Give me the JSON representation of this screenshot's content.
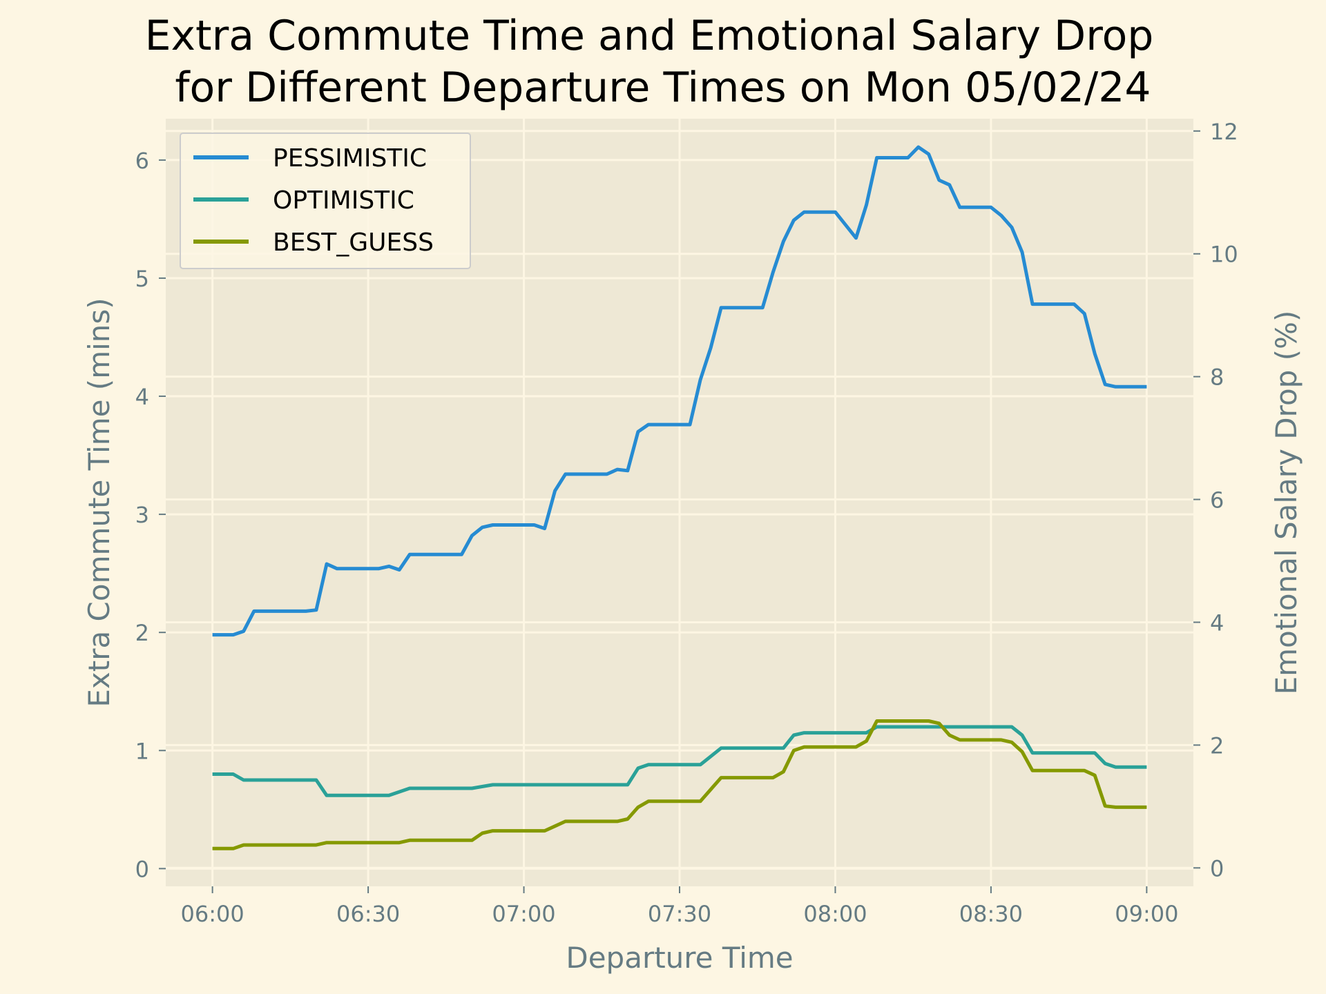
{
  "chart_data": {
    "type": "line",
    "title": [
      "Extra Commute Time and Emotional Salary Drop",
      "for Different Departure Times on Mon 05/02/24"
    ],
    "xlabel": "Departure Time",
    "ylabel_left": "Extra Commute Time (mins)",
    "ylabel_right": "Emotional Salary Drop (%)",
    "x_ticks": [
      "06:00",
      "06:30",
      "07:00",
      "07:30",
      "08:00",
      "08:30",
      "09:00"
    ],
    "x_tick_minutes": [
      0,
      30,
      60,
      90,
      120,
      150,
      180
    ],
    "y_left_ticks": [
      0,
      1,
      2,
      3,
      4,
      5,
      6
    ],
    "y_right_ticks": [
      0,
      2,
      4,
      6,
      8,
      10,
      12
    ],
    "xlim_minutes": [
      -9,
      189
    ],
    "ylim_left": [
      -0.15,
      6.35
    ],
    "ylim_right": [
      -0.3,
      12.2
    ],
    "legend_position": "top-left",
    "grid": true,
    "colors": {
      "background": "#fdf6e3",
      "plot_area": "#eee8d5",
      "grid": "#fdf6e3",
      "axis_text": "#657b83"
    },
    "series": [
      {
        "name": "PESSIMISTIC",
        "color": "#268bd2",
        "points": [
          [
            0,
            1.98
          ],
          [
            4,
            1.98
          ],
          [
            6,
            2.01
          ],
          [
            8,
            2.18
          ],
          [
            18,
            2.18
          ],
          [
            20,
            2.19
          ],
          [
            22,
            2.58
          ],
          [
            24,
            2.54
          ],
          [
            32,
            2.54
          ],
          [
            34,
            2.56
          ],
          [
            36,
            2.53
          ],
          [
            38,
            2.66
          ],
          [
            48,
            2.66
          ],
          [
            50,
            2.82
          ],
          [
            52,
            2.89
          ],
          [
            54,
            2.91
          ],
          [
            62,
            2.91
          ],
          [
            64,
            2.88
          ],
          [
            66,
            3.2
          ],
          [
            68,
            3.34
          ],
          [
            76,
            3.34
          ],
          [
            78,
            3.38
          ],
          [
            80,
            3.37
          ],
          [
            82,
            3.7
          ],
          [
            84,
            3.76
          ],
          [
            92,
            3.76
          ],
          [
            94,
            4.14
          ],
          [
            96,
            4.41
          ],
          [
            98,
            4.75
          ],
          [
            106,
            4.75
          ],
          [
            108,
            5.05
          ],
          [
            110,
            5.31
          ],
          [
            112,
            5.49
          ],
          [
            114,
            5.56
          ],
          [
            120,
            5.56
          ],
          [
            122,
            5.45
          ],
          [
            124,
            5.34
          ],
          [
            126,
            5.62
          ],
          [
            128,
            6.02
          ],
          [
            134,
            6.02
          ],
          [
            136,
            6.11
          ],
          [
            138,
            6.05
          ],
          [
            140,
            5.83
          ],
          [
            142,
            5.79
          ],
          [
            144,
            5.6
          ],
          [
            150,
            5.6
          ],
          [
            152,
            5.53
          ],
          [
            154,
            5.43
          ],
          [
            156,
            5.22
          ],
          [
            158,
            4.78
          ],
          [
            166,
            4.78
          ],
          [
            168,
            4.7
          ],
          [
            170,
            4.36
          ],
          [
            172,
            4.1
          ],
          [
            174,
            4.08
          ],
          [
            180,
            4.08
          ]
        ]
      },
      {
        "name": "OPTIMISTIC",
        "color": "#2aa198",
        "points": [
          [
            0,
            0.8
          ],
          [
            4,
            0.8
          ],
          [
            6,
            0.75
          ],
          [
            20,
            0.75
          ],
          [
            22,
            0.62
          ],
          [
            34,
            0.62
          ],
          [
            38,
            0.68
          ],
          [
            50,
            0.68
          ],
          [
            54,
            0.71
          ],
          [
            80,
            0.71
          ],
          [
            82,
            0.85
          ],
          [
            84,
            0.88
          ],
          [
            94,
            0.88
          ],
          [
            98,
            1.02
          ],
          [
            110,
            1.02
          ],
          [
            112,
            1.13
          ],
          [
            114,
            1.15
          ],
          [
            126,
            1.15
          ],
          [
            128,
            1.2
          ],
          [
            142,
            1.2
          ],
          [
            144,
            1.2
          ],
          [
            148,
            1.2
          ],
          [
            154,
            1.2
          ],
          [
            156,
            1.13
          ],
          [
            158,
            0.98
          ],
          [
            170,
            0.98
          ],
          [
            172,
            0.89
          ],
          [
            174,
            0.86
          ],
          [
            180,
            0.86
          ]
        ]
      },
      {
        "name": "BEST_GUESS",
        "color": "#859900",
        "points": [
          [
            0,
            0.17
          ],
          [
            4,
            0.17
          ],
          [
            6,
            0.2
          ],
          [
            20,
            0.2
          ],
          [
            22,
            0.22
          ],
          [
            36,
            0.22
          ],
          [
            38,
            0.24
          ],
          [
            50,
            0.24
          ],
          [
            52,
            0.3
          ],
          [
            54,
            0.32
          ],
          [
            64,
            0.32
          ],
          [
            66,
            0.36
          ],
          [
            68,
            0.4
          ],
          [
            78,
            0.4
          ],
          [
            80,
            0.42
          ],
          [
            82,
            0.52
          ],
          [
            84,
            0.57
          ],
          [
            94,
            0.57
          ],
          [
            96,
            0.67
          ],
          [
            98,
            0.77
          ],
          [
            108,
            0.77
          ],
          [
            110,
            0.82
          ],
          [
            112,
            1.0
          ],
          [
            114,
            1.03
          ],
          [
            124,
            1.03
          ],
          [
            126,
            1.08
          ],
          [
            128,
            1.25
          ],
          [
            138,
            1.25
          ],
          [
            140,
            1.23
          ],
          [
            142,
            1.13
          ],
          [
            144,
            1.09
          ],
          [
            152,
            1.09
          ],
          [
            154,
            1.07
          ],
          [
            156,
            0.99
          ],
          [
            158,
            0.83
          ],
          [
            168,
            0.83
          ],
          [
            170,
            0.79
          ],
          [
            172,
            0.53
          ],
          [
            174,
            0.52
          ],
          [
            180,
            0.52
          ]
        ]
      }
    ]
  }
}
